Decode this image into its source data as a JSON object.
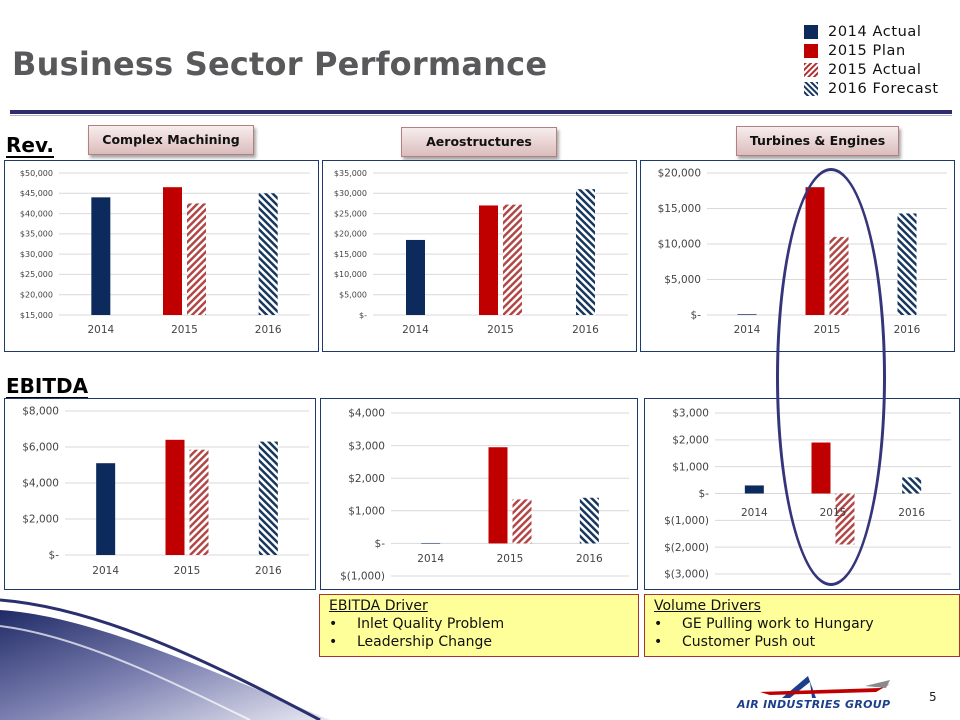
{
  "title": "Business Sector Performance",
  "page_number": "5",
  "colors": {
    "actual_2014": "#0d2a5c",
    "plan_2015": "#c00000",
    "actual_2015": "#b24747",
    "forecast_2016": "#17375e"
  },
  "legend": [
    {
      "label": "2014 Actual",
      "pattern": "solid-navy"
    },
    {
      "label": "2015 Plan",
      "pattern": "solid-red"
    },
    {
      "label": "2015 Actual",
      "pattern": "hatch-red"
    },
    {
      "label": "2016 Forecast",
      "pattern": "hatch-navy"
    }
  ],
  "row_labels": {
    "revenue": "Rev.",
    "ebitda": "EBITDA"
  },
  "sectors": [
    "Complex Machining",
    "Aerostructures",
    "Turbines & Engines"
  ],
  "drivers": {
    "ebitda": {
      "title": "EBITDA Driver",
      "items": [
        "Inlet Quality Problem",
        "Leadership Change"
      ]
    },
    "volume": {
      "title": "Volume Drivers",
      "items": [
        "GE Pulling work to Hungary",
        "Customer Push out"
      ]
    }
  },
  "logo_text": "AIR INDUSTRIES GROUP",
  "chart_data": [
    {
      "id": "rev-complex-machining",
      "type": "bar",
      "categories": [
        "2014",
        "2015",
        "2016"
      ],
      "series": [
        {
          "name": "2014 Actual",
          "values": [
            44000,
            null,
            null
          ]
        },
        {
          "name": "2015 Plan",
          "values": [
            null,
            46500,
            null
          ]
        },
        {
          "name": "2015 Actual",
          "values": [
            null,
            42500,
            null
          ]
        },
        {
          "name": "2016 Forecast",
          "values": [
            null,
            null,
            45000
          ]
        }
      ],
      "ylim": [
        15000,
        50000
      ],
      "yticks": [
        15000,
        20000,
        25000,
        30000,
        35000,
        40000,
        45000,
        50000
      ],
      "ytick_labels": [
        "$15,000",
        "$20,000",
        "$25,000",
        "$30,000",
        "$35,000",
        "$40,000",
        "$45,000",
        "$50,000"
      ]
    },
    {
      "id": "rev-aerostructures",
      "type": "bar",
      "categories": [
        "2014",
        "2015",
        "2016"
      ],
      "series": [
        {
          "name": "2014 Actual",
          "values": [
            18500,
            null,
            null
          ]
        },
        {
          "name": "2015 Plan",
          "values": [
            null,
            27000,
            null
          ]
        },
        {
          "name": "2015 Actual",
          "values": [
            null,
            27200,
            null
          ]
        },
        {
          "name": "2016 Forecast",
          "values": [
            null,
            null,
            31000
          ]
        }
      ],
      "ylim": [
        0,
        35000
      ],
      "yticks": [
        0,
        5000,
        10000,
        15000,
        20000,
        25000,
        30000,
        35000
      ],
      "ytick_labels": [
        "$-",
        "$5,000",
        "$10,000",
        "$15,000",
        "$20,000",
        "$25,000",
        "$30,000",
        "$35,000"
      ]
    },
    {
      "id": "rev-turbines-engines",
      "type": "bar",
      "categories": [
        "2014",
        "2015",
        "2016"
      ],
      "series": [
        {
          "name": "2014 Actual",
          "values": [
            100,
            null,
            null
          ]
        },
        {
          "name": "2015 Plan",
          "values": [
            null,
            18000,
            null
          ]
        },
        {
          "name": "2015 Actual",
          "values": [
            null,
            11000,
            null
          ]
        },
        {
          "name": "2016 Forecast",
          "values": [
            null,
            null,
            14300
          ]
        }
      ],
      "ylim": [
        0,
        20000
      ],
      "yticks": [
        0,
        5000,
        10000,
        15000,
        20000
      ],
      "ytick_labels": [
        "$-",
        "$5,000",
        "$10,000",
        "$15,000",
        "$20,000"
      ]
    },
    {
      "id": "ebitda-complex-machining",
      "type": "bar",
      "categories": [
        "2014",
        "2015",
        "2016"
      ],
      "series": [
        {
          "name": "2014 Actual",
          "values": [
            5100,
            null,
            null
          ]
        },
        {
          "name": "2015 Plan",
          "values": [
            null,
            6400,
            null
          ]
        },
        {
          "name": "2015 Actual",
          "values": [
            null,
            5850,
            null
          ]
        },
        {
          "name": "2016 Forecast",
          "values": [
            null,
            null,
            6300
          ]
        }
      ],
      "ylim": [
        0,
        8000
      ],
      "yticks": [
        0,
        2000,
        4000,
        6000,
        8000
      ],
      "ytick_labels": [
        "$-",
        "$2,000",
        "$4,000",
        "$6,000",
        "$8,000"
      ]
    },
    {
      "id": "ebitda-aerostructures",
      "type": "bar",
      "categories": [
        "2014",
        "2015",
        "2016"
      ],
      "series": [
        {
          "name": "2014 Actual",
          "values": [
            0,
            null,
            null
          ]
        },
        {
          "name": "2015 Plan",
          "values": [
            null,
            2950,
            null
          ]
        },
        {
          "name": "2015 Actual",
          "values": [
            null,
            1350,
            null
          ]
        },
        {
          "name": "2016 Forecast",
          "values": [
            null,
            null,
            1400
          ]
        }
      ],
      "ylim": [
        -1000,
        4000
      ],
      "yticks": [
        -1000,
        0,
        1000,
        2000,
        3000,
        4000
      ],
      "ytick_labels": [
        "$(1,000)",
        "$-",
        "$1,000",
        "$2,000",
        "$3,000",
        "$4,000"
      ]
    },
    {
      "id": "ebitda-turbines-engines",
      "type": "bar",
      "categories": [
        "2014",
        "2015",
        "2016"
      ],
      "series": [
        {
          "name": "2014 Actual",
          "values": [
            300,
            null,
            null
          ]
        },
        {
          "name": "2015 Plan",
          "values": [
            null,
            1900,
            null
          ]
        },
        {
          "name": "2015 Actual",
          "values": [
            null,
            -1900,
            null
          ]
        },
        {
          "name": "2016 Forecast",
          "values": [
            null,
            null,
            600
          ]
        }
      ],
      "ylim": [
        -3000,
        3000
      ],
      "yticks": [
        -3000,
        -2000,
        -1000,
        0,
        1000,
        2000,
        3000
      ],
      "ytick_labels": [
        "$(3,000)",
        "$(2,000)",
        "$(1,000)",
        "$-",
        "$1,000",
        "$2,000",
        "$3,000"
      ]
    }
  ]
}
